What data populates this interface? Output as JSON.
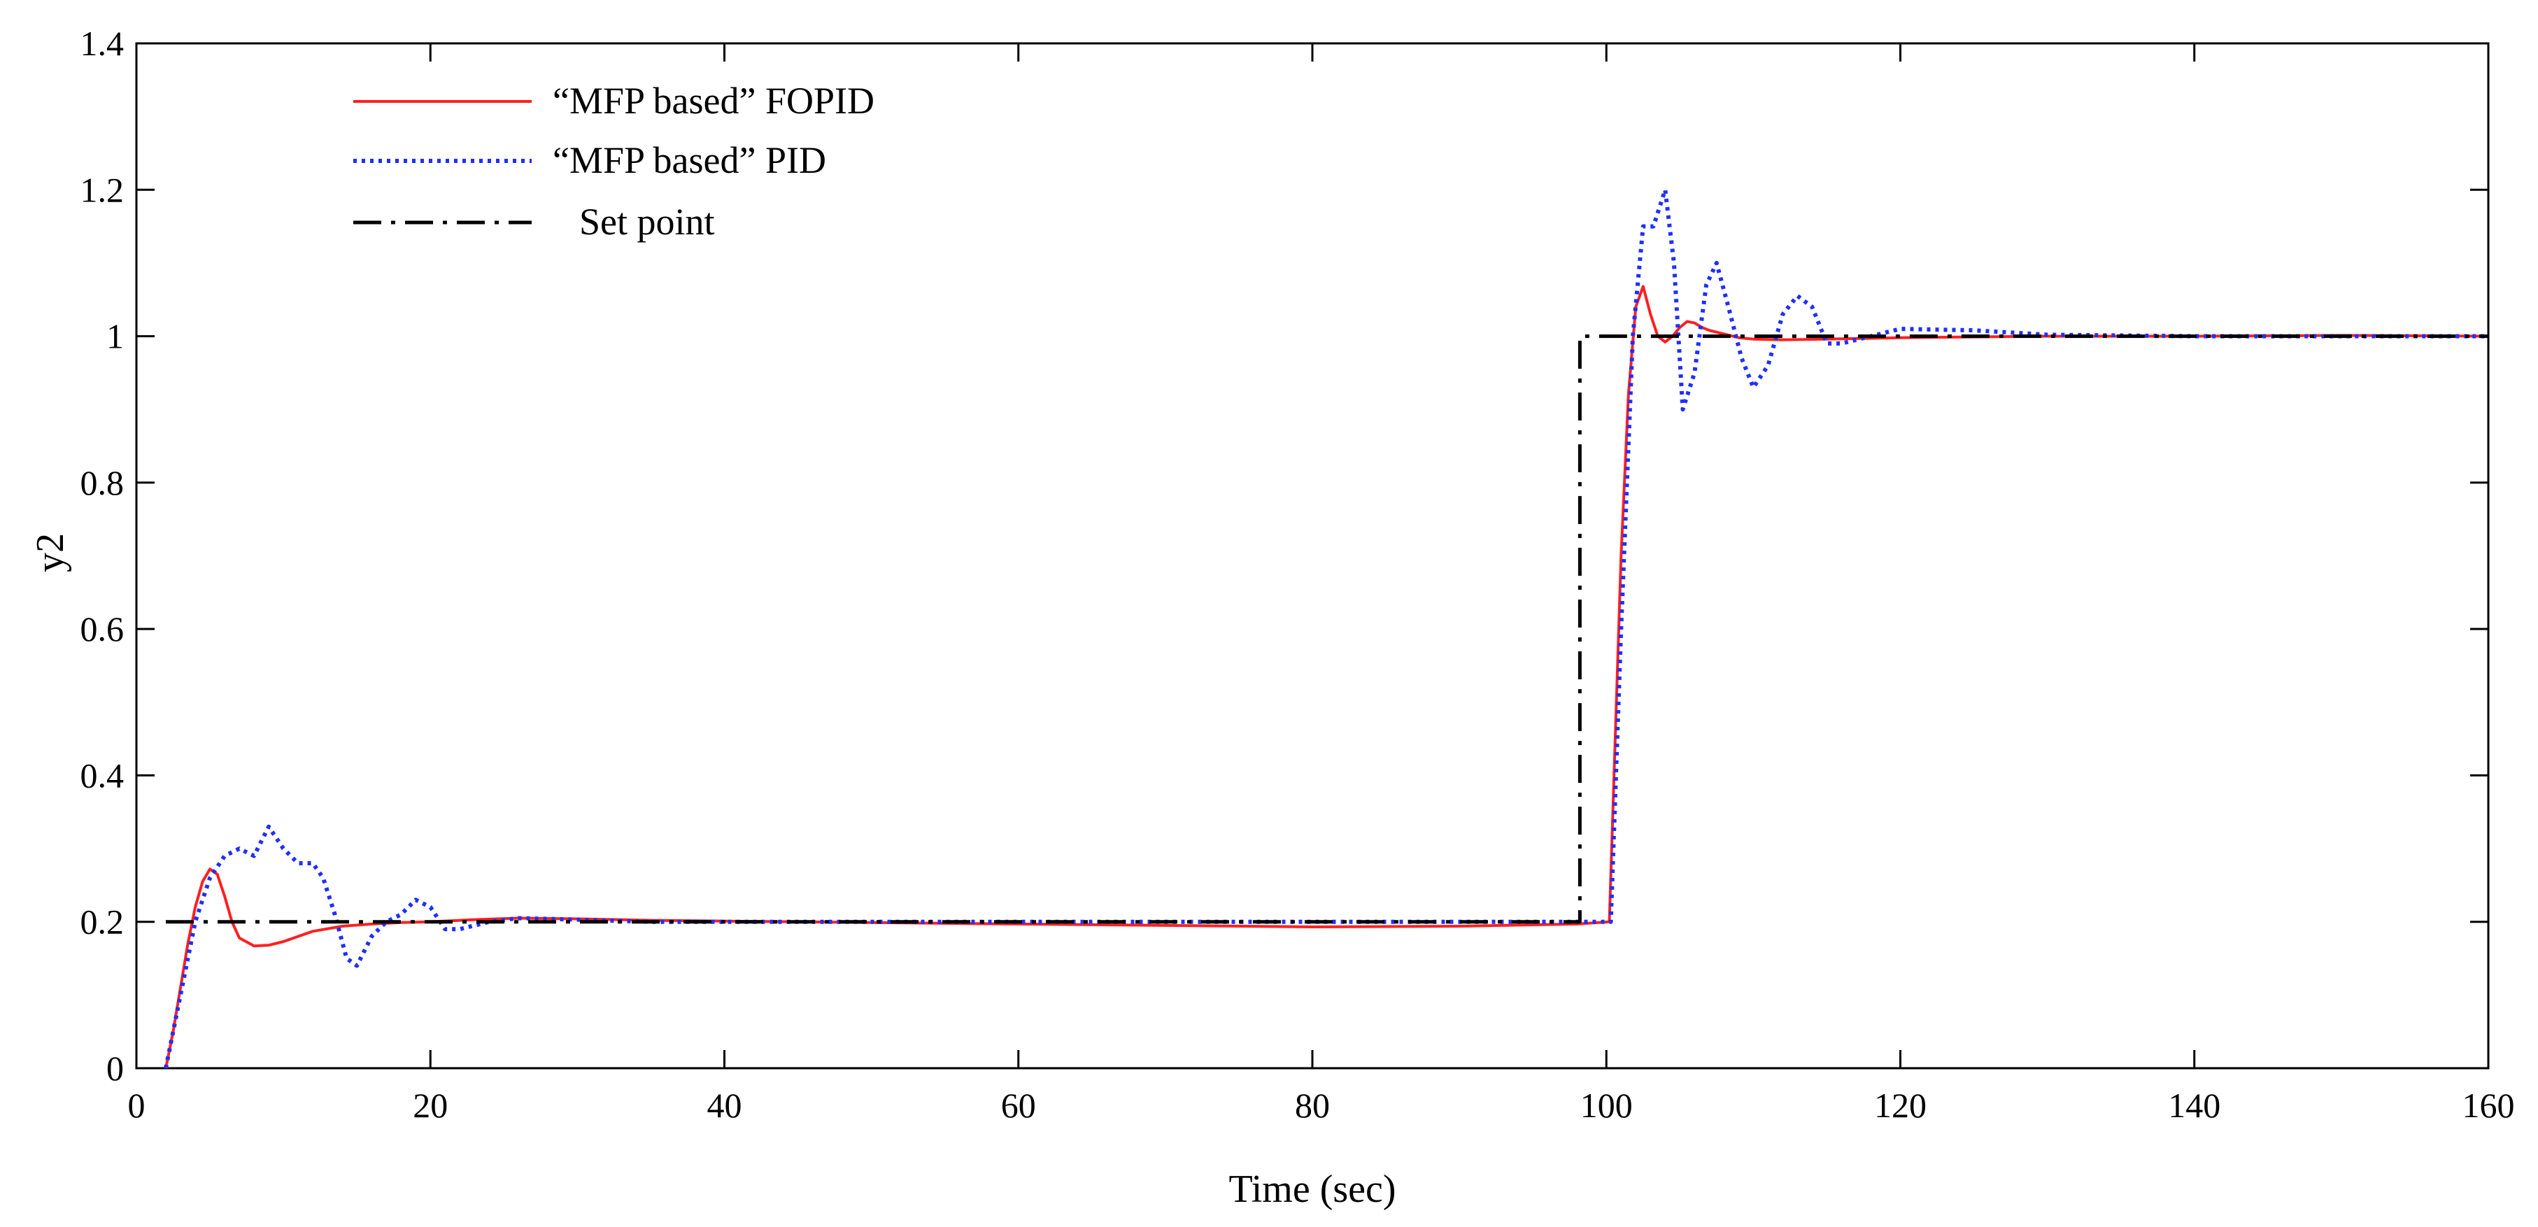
{
  "chart_data": {
    "type": "line",
    "title": "",
    "xlabel": "Time (sec)",
    "ylabel": "y2",
    "xlim": [
      0,
      160
    ],
    "ylim": [
      0,
      1.4
    ],
    "xticks": [
      0,
      20,
      40,
      60,
      80,
      100,
      120,
      140,
      160
    ],
    "xtick_labels": [
      "0",
      "20",
      "40",
      "60",
      "80",
      "100",
      "120",
      "140",
      "160"
    ],
    "yticks": [
      0,
      0.2,
      0.4,
      0.6,
      0.8,
      1.0,
      1.2,
      1.4
    ],
    "ytick_labels": [
      "0",
      "0.2",
      "0.4",
      "0.6",
      "0.8",
      "1",
      "1.2",
      "1.4"
    ],
    "grid": false,
    "legend_position": "top-left",
    "series": [
      {
        "name": "“MFP based” FOPID",
        "color": "#ff2020",
        "style": "solid",
        "x": [
          2,
          2.5,
          3,
          3.5,
          4,
          4.5,
          5,
          5.5,
          6,
          6.5,
          7,
          8,
          9,
          10,
          11,
          12,
          14,
          16,
          18,
          20,
          23,
          26,
          30,
          35,
          40,
          50,
          60,
          70,
          80,
          90,
          98,
          100.2,
          100.6,
          101,
          101.5,
          102,
          102.5,
          103,
          103.5,
          104,
          104.5,
          105,
          105.5,
          106,
          106.5,
          107,
          108,
          109,
          110,
          112,
          115,
          120,
          125,
          130,
          140,
          150,
          160
        ],
        "y": [
          0,
          0.05,
          0.11,
          0.17,
          0.22,
          0.255,
          0.272,
          0.265,
          0.235,
          0.2,
          0.178,
          0.167,
          0.168,
          0.173,
          0.18,
          0.187,
          0.194,
          0.197,
          0.199,
          0.2,
          0.203,
          0.205,
          0.204,
          0.202,
          0.201,
          0.199,
          0.197,
          0.195,
          0.193,
          0.194,
          0.197,
          0.2,
          0.45,
          0.7,
          0.92,
          1.04,
          1.068,
          1.03,
          1.0,
          0.992,
          1.0,
          1.012,
          1.02,
          1.018,
          1.012,
          1.008,
          1.003,
          0.998,
          0.996,
          0.995,
          0.996,
          0.998,
          0.999,
          1.0,
          1.0,
          1.001,
          1.0
        ]
      },
      {
        "name": "“MFP based” PID",
        "color": "#1f2fff",
        "style": "dotted",
        "x": [
          2,
          3,
          4,
          5,
          6,
          7,
          8,
          9,
          10,
          11,
          12,
          12.7,
          13.5,
          14.3,
          15,
          15.5,
          16,
          17,
          18,
          19,
          20,
          21,
          22,
          24,
          26,
          30,
          35,
          40,
          50,
          60,
          70,
          80,
          90,
          98,
          100.3,
          101,
          101.8,
          102.5,
          103.2,
          104,
          104.6,
          105.2,
          106,
          106.8,
          107.5,
          108.3,
          109.2,
          110,
          111,
          112,
          113,
          114,
          115,
          116,
          118,
          120,
          125,
          130,
          140,
          150,
          160
        ],
        "y": [
          0,
          0.1,
          0.2,
          0.26,
          0.29,
          0.3,
          0.29,
          0.33,
          0.3,
          0.28,
          0.28,
          0.26,
          0.21,
          0.15,
          0.14,
          0.16,
          0.18,
          0.2,
          0.21,
          0.23,
          0.22,
          0.19,
          0.19,
          0.2,
          0.205,
          0.203,
          0.2,
          0.2,
          0.2,
          0.2,
          0.2,
          0.2,
          0.2,
          0.2,
          0.2,
          0.6,
          1.0,
          1.15,
          1.15,
          1.2,
          1.1,
          0.9,
          0.95,
          1.07,
          1.1,
          1.04,
          0.97,
          0.93,
          0.96,
          1.03,
          1.055,
          1.04,
          0.99,
          0.99,
          1.0,
          1.01,
          1.008,
          1.002,
          1.0,
          1.0,
          1.0
        ]
      },
      {
        "name": "Set point",
        "color": "#000000",
        "style": "dashdot",
        "x": [
          2,
          98.2,
          98.2,
          160
        ],
        "y": [
          0.2,
          0.2,
          1.0,
          1.0
        ]
      }
    ]
  }
}
